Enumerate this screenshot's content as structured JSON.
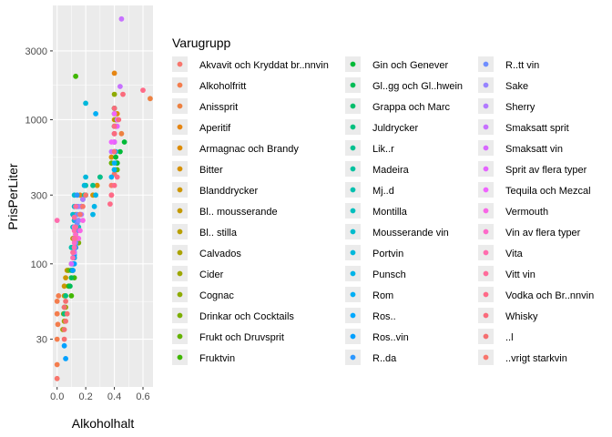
{
  "chart_data": {
    "type": "scatter",
    "xlabel": "Alkoholhalt",
    "ylabel": "PrisPerLiter",
    "xlim": [
      -0.03,
      0.67
    ],
    "ylim": [
      14,
      6200
    ],
    "yscale": "log",
    "x_ticks": [
      {
        "value": 0.0,
        "label": "0.0"
      },
      {
        "value": 0.2,
        "label": "0.2"
      },
      {
        "value": 0.4,
        "label": "0.4"
      },
      {
        "value": 0.6,
        "label": "0.6"
      }
    ],
    "y_ticks": [
      {
        "value": 30,
        "label": "30"
      },
      {
        "value": 100,
        "label": "100"
      },
      {
        "value": 300,
        "label": "300"
      },
      {
        "value": 1000,
        "label": "1000"
      },
      {
        "value": 3000,
        "label": "3000"
      }
    ],
    "grid": true,
    "legend_position": "right",
    "legend_title": "Varugrupp",
    "series": [
      {
        "name": "Akvavit och Kryddat br..nnvin",
        "color": "#F8766D",
        "points": [
          [
            0.38,
            350
          ],
          [
            0.4,
            420
          ],
          [
            0.42,
            500
          ],
          [
            0.38,
            300
          ]
        ]
      },
      {
        "name": "Alkoholfritt",
        "color": "#F47D4D",
        "points": [
          [
            0.0,
            30
          ],
          [
            0.0,
            45
          ],
          [
            0.01,
            60
          ],
          [
            0.0,
            20
          ],
          [
            0.0,
            55
          ],
          [
            0.005,
            38
          ]
        ]
      },
      {
        "name": "Anissprit",
        "color": "#ED8141",
        "points": [
          [
            0.4,
            600
          ],
          [
            0.45,
            800
          ],
          [
            0.42,
            500
          ],
          [
            0.65,
            1400
          ]
        ]
      },
      {
        "name": "Aperitif",
        "color": "#E68613",
        "points": [
          [
            0.15,
            200
          ],
          [
            0.17,
            250
          ],
          [
            0.16,
            300
          ],
          [
            0.4,
            2100
          ]
        ]
      },
      {
        "name": "Armagnac och Brandy",
        "color": "#DE8C00",
        "points": [
          [
            0.4,
            900
          ],
          [
            0.4,
            700
          ],
          [
            0.42,
            1100
          ],
          [
            0.4,
            1000
          ]
        ]
      },
      {
        "name": "Bitter",
        "color": "#D69100",
        "points": [
          [
            0.28,
            350
          ],
          [
            0.3,
            400
          ],
          [
            0.25,
            300
          ],
          [
            0.38,
            550
          ]
        ]
      },
      {
        "name": "Blanddrycker",
        "color": "#CD9600",
        "points": [
          [
            0.05,
            60
          ],
          [
            0.06,
            80
          ],
          [
            0.05,
            70
          ],
          [
            0.07,
            90
          ]
        ]
      },
      {
        "name": "Bl.. mousserande",
        "color": "#C49A00",
        "points": [
          [
            0.12,
            180
          ],
          [
            0.11,
            150
          ],
          [
            0.12,
            200
          ],
          [
            0.13,
            220
          ]
        ]
      },
      {
        "name": "Bl.. stilla",
        "color": "#B9A000",
        "points": [
          [
            0.13,
            130
          ],
          [
            0.12,
            110
          ],
          [
            0.14,
            150
          ],
          [
            0.13,
            170
          ]
        ]
      },
      {
        "name": "Calvados",
        "color": "#ABA300",
        "points": [
          [
            0.4,
            800
          ],
          [
            0.41,
            900
          ],
          [
            0.4,
            700
          ]
        ]
      },
      {
        "name": "Cider",
        "color": "#9EA700",
        "points": [
          [
            0.05,
            40
          ],
          [
            0.04,
            35
          ],
          [
            0.06,
            50
          ],
          [
            0.045,
            45
          ]
        ]
      },
      {
        "name": "Cognac",
        "color": "#8EAB00",
        "points": [
          [
            0.4,
            1200
          ],
          [
            0.4,
            1500
          ],
          [
            0.41,
            1000
          ],
          [
            0.4,
            1100
          ]
        ]
      },
      {
        "name": "Drinkar och Cocktails",
        "color": "#7CAE00",
        "points": [
          [
            0.1,
            100
          ],
          [
            0.12,
            120
          ],
          [
            0.15,
            140
          ],
          [
            0.08,
            90
          ]
        ]
      },
      {
        "name": "Frukt och Druvsprit",
        "color": "#64B200",
        "points": [
          [
            0.38,
            500
          ],
          [
            0.4,
            600
          ],
          [
            0.42,
            450
          ]
        ]
      },
      {
        "name": "Fruktvin",
        "color": "#40B700",
        "points": [
          [
            0.1,
            60
          ],
          [
            0.12,
            80
          ],
          [
            0.08,
            70
          ],
          [
            0.11,
            90
          ],
          [
            0.13,
            2000
          ]
        ]
      },
      {
        "name": "Gin och Genever",
        "color": "#00BA38",
        "points": [
          [
            0.4,
            450
          ],
          [
            0.42,
            500
          ],
          [
            0.44,
            600
          ],
          [
            0.41,
            550
          ],
          [
            0.47,
            700
          ]
        ]
      },
      {
        "name": "Gl..gg och Gl..hwein",
        "color": "#00BC56",
        "points": [
          [
            0.1,
            80
          ],
          [
            0.09,
            70
          ],
          [
            0.11,
            100
          ],
          [
            0.1,
            90
          ]
        ]
      },
      {
        "name": "Grappa och Marc",
        "color": "#00BE6C",
        "points": [
          [
            0.4,
            900
          ],
          [
            0.42,
            1000
          ],
          [
            0.4,
            1200
          ]
        ]
      },
      {
        "name": "Juldrycker",
        "color": "#00C07F",
        "points": [
          [
            0.05,
            50
          ],
          [
            0.06,
            60
          ],
          [
            0.05,
            45
          ]
        ]
      },
      {
        "name": "Lik..r",
        "color": "#00C08F",
        "points": [
          [
            0.2,
            300
          ],
          [
            0.25,
            350
          ],
          [
            0.3,
            400
          ],
          [
            0.17,
            250
          ]
        ]
      },
      {
        "name": "Madeira",
        "color": "#00C19F",
        "points": [
          [
            0.19,
            300
          ],
          [
            0.2,
            350
          ],
          [
            0.18,
            280
          ]
        ]
      },
      {
        "name": "Mj..d",
        "color": "#00C0AF",
        "points": [
          [
            0.12,
            150
          ],
          [
            0.13,
            180
          ],
          [
            0.1,
            130
          ]
        ]
      },
      {
        "name": "Montilla",
        "color": "#00BFBE",
        "points": [
          [
            0.15,
            200
          ],
          [
            0.16,
            220
          ],
          [
            0.15,
            180
          ]
        ]
      },
      {
        "name": "Mousserande vin",
        "color": "#00BCCD",
        "points": [
          [
            0.12,
            200
          ],
          [
            0.11,
            180
          ],
          [
            0.12,
            250
          ],
          [
            0.12,
            300
          ],
          [
            0.12,
            150
          ],
          [
            0.11,
            220
          ]
        ]
      },
      {
        "name": "Portvin",
        "color": "#00B8DB",
        "points": [
          [
            0.2,
            300
          ],
          [
            0.19,
            350
          ],
          [
            0.2,
            400
          ],
          [
            0.2,
            1300
          ]
        ]
      },
      {
        "name": "Punsch",
        "color": "#00B4E8",
        "points": [
          [
            0.26,
            250
          ],
          [
            0.25,
            220
          ],
          [
            0.27,
            300
          ]
        ]
      },
      {
        "name": "Rom",
        "color": "#00AFF5",
        "points": [
          [
            0.4,
            450
          ],
          [
            0.4,
            500
          ],
          [
            0.38,
            400
          ],
          [
            0.41,
            600
          ],
          [
            0.27,
            1100
          ]
        ]
      },
      {
        "name": "Ros..",
        "color": "#00A9FF",
        "points": [
          [
            0.12,
            110
          ],
          [
            0.13,
            130
          ],
          [
            0.12,
            120
          ],
          [
            0.13,
            140
          ]
        ]
      },
      {
        "name": "Ros..vin",
        "color": "#00A0FF",
        "points": [
          [
            0.12,
            100
          ],
          [
            0.11,
            90
          ],
          [
            0.12,
            115
          ],
          [
            0.06,
            22
          ],
          [
            0.05,
            27
          ]
        ]
      },
      {
        "name": "R..da",
        "color": "#2C97FF",
        "points": [
          [
            0.13,
            150
          ],
          [
            0.14,
            170
          ],
          [
            0.13,
            200
          ],
          [
            0.14,
            250
          ],
          [
            0.13,
            130
          ],
          [
            0.14,
            300
          ]
        ]
      },
      {
        "name": "R..tt vin",
        "color": "#6F8EFF",
        "points": [
          [
            0.13,
            160
          ],
          [
            0.14,
            220
          ],
          [
            0.13,
            140
          ],
          [
            0.14,
            190
          ]
        ]
      },
      {
        "name": "Sake",
        "color": "#9784FF",
        "points": [
          [
            0.15,
            200
          ],
          [
            0.16,
            220
          ],
          [
            0.15,
            250
          ]
        ]
      },
      {
        "name": "Sherry",
        "color": "#B27AFF",
        "points": [
          [
            0.17,
            250
          ],
          [
            0.18,
            280
          ],
          [
            0.17,
            220
          ]
        ]
      },
      {
        "name": "Smaksatt sprit",
        "color": "#C771FF",
        "points": [
          [
            0.45,
            5000
          ],
          [
            0.4,
            700
          ],
          [
            0.38,
            600
          ],
          [
            0.44,
            1700
          ]
        ]
      },
      {
        "name": "Smaksatt vin",
        "color": "#D869FF",
        "points": [
          [
            0.12,
            120
          ],
          [
            0.1,
            100
          ],
          [
            0.14,
            150
          ]
        ]
      },
      {
        "name": "Sprit av flera typer",
        "color": "#E564FF",
        "points": [
          [
            0.4,
            700
          ],
          [
            0.4,
            800
          ],
          [
            0.42,
            900
          ]
        ]
      },
      {
        "name": "Tequila och Mezcal",
        "color": "#F064FF",
        "points": [
          [
            0.4,
            800
          ],
          [
            0.38,
            700
          ],
          [
            0.42,
            1000
          ],
          [
            0.4,
            1100
          ]
        ]
      },
      {
        "name": "Vermouth",
        "color": "#F866E6",
        "points": [
          [
            0.15,
            150
          ],
          [
            0.16,
            170
          ],
          [
            0.18,
            200
          ]
        ]
      },
      {
        "name": "Vin av flera typer",
        "color": "#FD6AC9",
        "points": [
          [
            0.12,
            140
          ],
          [
            0.13,
            160
          ],
          [
            0.12,
            180
          ]
        ]
      },
      {
        "name": "Vita",
        "color": "#FF6DAE",
        "points": [
          [
            0.12,
            130
          ],
          [
            0.11,
            110
          ],
          [
            0.13,
            150
          ],
          [
            0.12,
            170
          ],
          [
            0.0,
            200
          ]
        ]
      },
      {
        "name": "Vitt vin",
        "color": "#FF6C9B",
        "points": [
          [
            0.12,
            150
          ],
          [
            0.13,
            180
          ],
          [
            0.11,
            120
          ],
          [
            0.12,
            210
          ],
          [
            0.13,
            250
          ]
        ]
      },
      {
        "name": "Vodka och Br..nnvin",
        "color": "#FF6A88",
        "points": [
          [
            0.4,
            350
          ],
          [
            0.38,
            300
          ],
          [
            0.42,
            400
          ],
          [
            0.37,
            260
          ],
          [
            0.6,
            1600
          ],
          [
            0.4,
            900
          ]
        ]
      },
      {
        "name": "Whisky",
        "color": "#FA6B7C",
        "points": [
          [
            0.4,
            800
          ],
          [
            0.43,
            1000
          ],
          [
            0.4,
            1200
          ],
          [
            0.46,
            1500
          ],
          [
            0.4,
            600
          ]
        ]
      },
      {
        "name": "..l",
        "color": "#F56F70",
        "points": [
          [
            0.05,
            30
          ],
          [
            0.06,
            40
          ],
          [
            0.05,
            35
          ],
          [
            0.07,
            45
          ],
          [
            0.05,
            50
          ],
          [
            0.06,
            55
          ]
        ]
      },
      {
        "name": "..vrigt starkvin",
        "color": "#F8766D",
        "points": [
          [
            0.0,
            16
          ],
          [
            0.2,
            300
          ],
          [
            0.18,
            250
          ],
          [
            0.16,
            220
          ]
        ]
      }
    ]
  }
}
